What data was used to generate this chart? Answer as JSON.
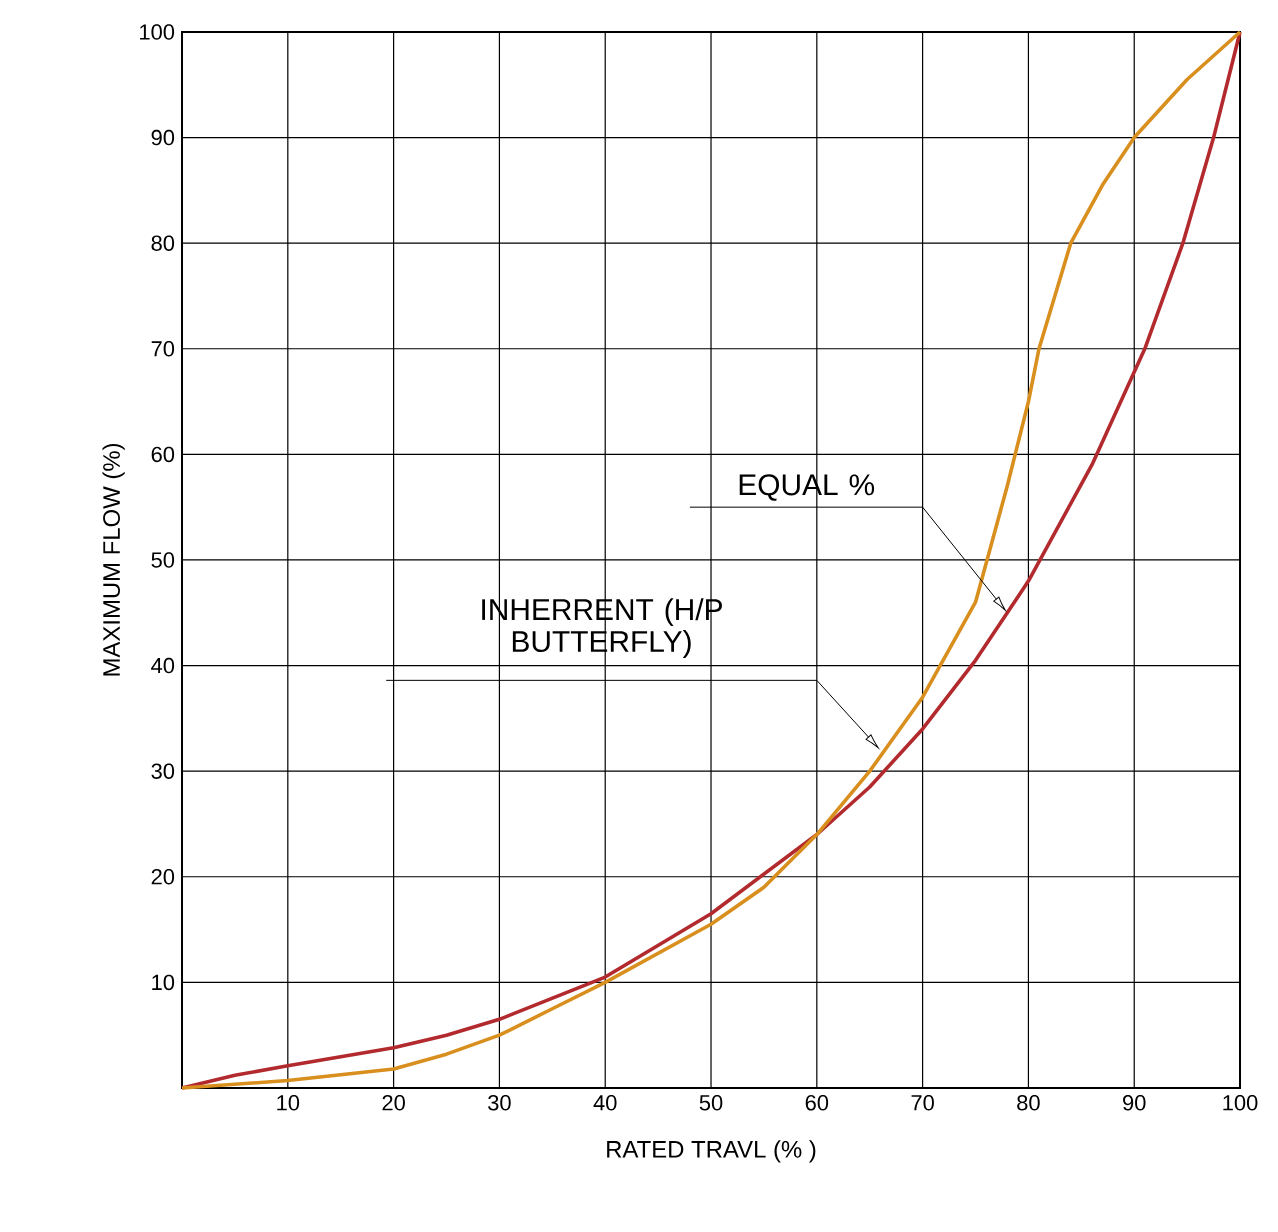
{
  "chart_data": {
    "type": "line",
    "xlabel": "RATED TRAVL (% )",
    "ylabel": "MAXIMUM FLOW  (%)",
    "xlim": [
      0,
      100
    ],
    "ylim": [
      0,
      100
    ],
    "xticks": [
      10,
      20,
      30,
      40,
      50,
      60,
      70,
      80,
      90,
      100
    ],
    "yticks": [
      10,
      20,
      30,
      40,
      50,
      60,
      70,
      80,
      90,
      100
    ],
    "grid": true,
    "marker": "none",
    "line_style": "solid",
    "series": [
      {
        "color": "#b22a2e",
        "x": [
          0,
          5,
          10,
          20,
          25,
          30,
          40,
          50,
          60,
          65,
          70,
          75,
          80,
          86,
          91,
          94.6,
          97.5,
          100
        ],
        "values": [
          0,
          1.2,
          2.1,
          3.8,
          5,
          6.5,
          10.5,
          16.5,
          24,
          28.5,
          34,
          40.5,
          48,
          59,
          70,
          80,
          90,
          100
        ]
      },
      {
        "color": "#d98f1e",
        "x": [
          0,
          10,
          20,
          25,
          30,
          35,
          40,
          50,
          55,
          60,
          65,
          70,
          75,
          78,
          80,
          81,
          82.5,
          84,
          87,
          90,
          95,
          100
        ],
        "values": [
          0,
          0.7,
          1.8,
          3.2,
          5,
          7.5,
          10,
          15.5,
          19,
          24,
          30,
          37,
          46,
          57,
          65,
          70,
          75,
          80,
          85.5,
          90,
          95.5,
          100
        ]
      }
    ],
    "annotations": [
      {
        "text": "EQUAL %",
        "x": 78,
        "y": 45
      },
      {
        "text": "INHERRENT (H/P BUTTERFLY)",
        "x": 66,
        "y": 32
      }
    ]
  }
}
